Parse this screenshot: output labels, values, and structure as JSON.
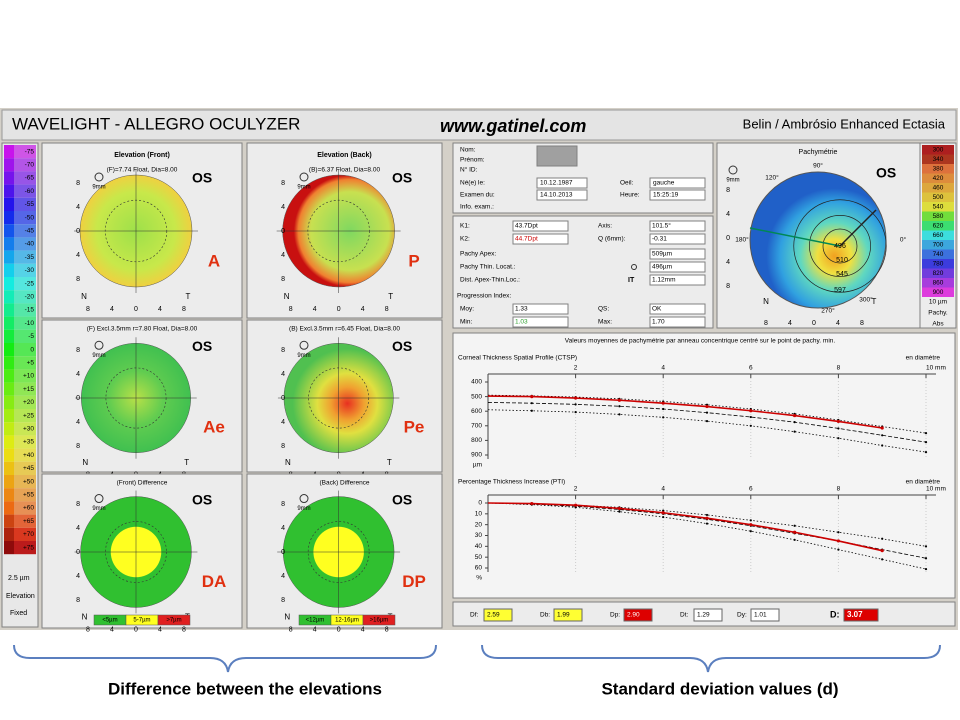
{
  "header": {
    "title": "WAVELIGHT  -  ALLEGRO OCULYZER",
    "website": "www.gatinel.com",
    "subtitle": "Belin / Ambrósio Enhanced Ectasia"
  },
  "elevation_scale": {
    "values": [
      "-75",
      "-70",
      "-65",
      "-60",
      "-55",
      "-50",
      "-45",
      "-40",
      "-35",
      "-30",
      "-25",
      "-20",
      "-15",
      "-10",
      "-5",
      "0",
      "+5",
      "+10",
      "+15",
      "+20",
      "+25",
      "+30",
      "+35",
      "+40",
      "+45",
      "+50",
      "+55",
      "+60",
      "+65",
      "+70",
      "+75"
    ],
    "step": "2.5 µm",
    "mode": "Elevation",
    "type": "Fixed"
  },
  "maps": [
    {
      "title": "Elevation (Front)",
      "subtitle": "(F)=7.74 Float, Dia=8.00",
      "zoom": "9mm",
      "eye": "OS",
      "label": "A",
      "ticks": [
        "8",
        "4",
        "0",
        "4",
        "8"
      ],
      "nasal": "N",
      "temporal": "T"
    },
    {
      "title": "Elevation (Back)",
      "subtitle": "(B)=6.37 Float, Dia=8.00",
      "zoom": "9mm",
      "eye": "OS",
      "label": "P",
      "ticks": [
        "8",
        "4",
        "0",
        "4",
        "8"
      ],
      "nasal": "N",
      "temporal": "T"
    },
    {
      "subtitle": "(F) Excl.3.5mm r=7.80 Float, Dia=8.00",
      "zoom": "9mm",
      "eye": "OS",
      "label": "Ae",
      "ticks": [
        "8",
        "4",
        "0",
        "4",
        "8"
      ],
      "nasal": "N",
      "temporal": "T"
    },
    {
      "subtitle": "(B) Excl.3.5mm r=6.45 Float, Dia=8.00",
      "zoom": "9mm",
      "eye": "OS",
      "label": "Pe",
      "ticks": [
        "8",
        "4",
        "0",
        "4",
        "8"
      ],
      "nasal": "N",
      "temporal": "T"
    },
    {
      "subtitle": "(Front) Difference",
      "zoom": "9mm",
      "eye": "OS",
      "label": "DA",
      "ticks": [
        "8",
        "4",
        "0",
        "4",
        "8"
      ],
      "nasal": "N",
      "temporal": "T",
      "legend": [
        "<5µm",
        "5-7µm",
        ">7µm"
      ]
    },
    {
      "subtitle": "(Back) Difference",
      "zoom": "9mm",
      "eye": "OS",
      "label": "DP",
      "ticks": [
        "8",
        "4",
        "0",
        "4",
        "8"
      ],
      "nasal": "N",
      "temporal": "T",
      "legend": [
        "<12µm",
        "12-16µm",
        ">16µm"
      ]
    }
  ],
  "patient": {
    "name": "Nom:",
    "first_name": "Prénom:",
    "id": "N° ID:",
    "birth_label": "Né(e) le:",
    "birth": "10.12.1987",
    "eye_label": "Oeil:",
    "eye": "gauche",
    "exam_label": "Examen du:",
    "exam": "14.10.2013",
    "time_label": "Heure:",
    "time": "15:25:19",
    "info": "Info. exam.:"
  },
  "keratometry": {
    "k1_label": "K1:",
    "k1": "43.7Dpt",
    "axis_label": "Axis:",
    "axis": "101.5°",
    "k2_label": "K2:",
    "k2": "44.7Dpt",
    "q_label": "Q (6mm):",
    "q": "-0.31",
    "apex_label": "Pachy Apex:",
    "apex": "509µm",
    "thin_label": "Pachy Thin. Locat.:",
    "thin": "496µm",
    "dist_label": "Dist. Apex-Thin.Loc.:",
    "dist_dir": "IT",
    "dist": "1.12mm",
    "progression": "Progression Index:",
    "moy_label": "Moy:",
    "moy": "1.33",
    "qs_label": "QS:",
    "qs": "OK",
    "min_label": "Min:",
    "min": "1.03",
    "max_label": "Max:",
    "max": "1.70"
  },
  "pachymetry": {
    "title": "Pachymétrie",
    "zoom": "9mm",
    "eye": "OS",
    "values": [
      "496",
      "510",
      "545",
      "597"
    ],
    "angles": [
      "90°",
      "120°",
      "180°",
      "0°",
      "270°",
      "300°"
    ],
    "ticks": [
      "8",
      "4",
      "0",
      "4",
      "8"
    ],
    "nasal": "N",
    "temporal": "T",
    "scale": [
      "300",
      "340",
      "380",
      "420",
      "460",
      "500",
      "540",
      "580",
      "620",
      "660",
      "700",
      "740",
      "780",
      "820",
      "860",
      "900"
    ],
    "step": "10 µm",
    "mode": "Pachy.",
    "type": "Abs"
  },
  "charts_header": "Valeurs moyennes de pachymétrie par anneau concentrique centré sur le point de pachy. min.",
  "chart_data": [
    {
      "type": "line",
      "title": "Corneal Thickness Spatial Profile (CTSP)",
      "x_note": "en diamètre",
      "y_unit": "µm",
      "x": [
        0,
        1,
        2,
        3,
        4,
        5,
        6,
        7,
        8,
        9,
        10
      ],
      "xlim": [
        0,
        10
      ],
      "xticks": [
        2,
        4,
        6,
        8,
        {
          "value": 10,
          "label": "10 mm"
        }
      ],
      "ylim": [
        900,
        400
      ],
      "yticks": [
        400,
        500,
        600,
        700,
        800,
        900
      ],
      "series": [
        {
          "color": "#000000",
          "values": [
            590,
            597,
            606,
            622,
            642,
            668,
            700,
            740,
            785,
            835,
            880
          ]
        },
        {
          "color": "#000000",
          "values": [
            540,
            545,
            553,
            566,
            585,
            610,
            640,
            675,
            718,
            765,
            812
          ]
        },
        {
          "color": "#000000",
          "values": [
            490,
            495,
            503,
            515,
            533,
            556,
            585,
            618,
            660,
            705,
            750
          ]
        },
        {
          "color": "#cc0000",
          "values": [
            496,
            500,
            510,
            525,
            545,
            568,
            597,
            630,
            670,
            715,
            null
          ]
        }
      ]
    },
    {
      "type": "line",
      "title": "Percentage Thickness Increase (PTI)",
      "x_note": "en diamètre",
      "y_unit": "%",
      "x": [
        0,
        1,
        2,
        3,
        4,
        5,
        6,
        7,
        8,
        9,
        10
      ],
      "xlim": [
        0,
        10
      ],
      "xticks": [
        2,
        4,
        6,
        8,
        {
          "value": 10,
          "label": "10 mm"
        }
      ],
      "ylim": [
        60,
        0
      ],
      "yticks": [
        0,
        10,
        20,
        30,
        40,
        50,
        60
      ],
      "series": [
        {
          "color": "#000000",
          "values": [
            0,
            1.5,
            4,
            8,
            13,
            19,
            26,
            34,
            43,
            52,
            61
          ]
        },
        {
          "color": "#000000",
          "values": [
            0,
            1,
            3,
            6,
            10,
            15,
            21,
            28,
            35,
            43,
            51
          ]
        },
        {
          "color": "#000000",
          "values": [
            0,
            0.5,
            2,
            4,
            7,
            11,
            16,
            21,
            27,
            33,
            40
          ]
        },
        {
          "color": "#cc0000",
          "values": [
            0,
            0.5,
            2,
            5,
            9,
            14,
            20,
            27,
            35,
            44,
            null
          ]
        }
      ]
    }
  ],
  "d_values": [
    {
      "label": "Df:",
      "value": "2.59",
      "color": "#ffff33"
    },
    {
      "label": "Db:",
      "value": "1.99",
      "color": "#ffff33"
    },
    {
      "label": "Dp:",
      "value": "2.90",
      "color": "#dd0000"
    },
    {
      "label": "Dt:",
      "value": "1.29",
      "color": "#ffffff"
    },
    {
      "label": "Dy:",
      "value": "1.01",
      "color": "#ffffff"
    },
    {
      "label": "D:",
      "value": "3.07",
      "color": "#dd0000"
    }
  ],
  "captions": {
    "left": "Difference between the elevations",
    "right": "Standard deviation values (d)"
  }
}
